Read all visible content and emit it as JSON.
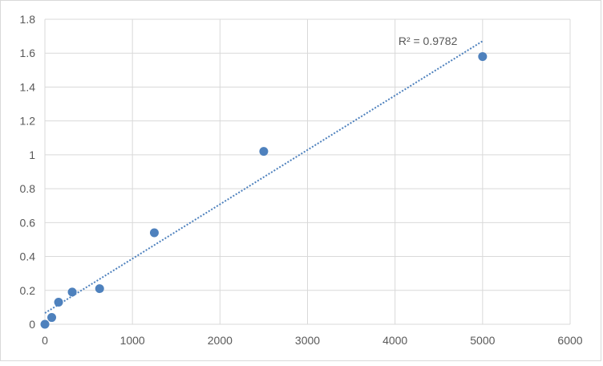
{
  "chart_data": {
    "type": "scatter",
    "title": "",
    "xlabel": "",
    "ylabel": "",
    "xlim": [
      0,
      6000
    ],
    "ylim": [
      0,
      1.8
    ],
    "xticks": [
      0,
      1000,
      2000,
      3000,
      4000,
      5000,
      6000
    ],
    "yticks": [
      0,
      0.2,
      0.4,
      0.6,
      0.8,
      1,
      1.2,
      1.4,
      1.6,
      1.8
    ],
    "grid": true,
    "legend": "none",
    "series": [
      {
        "x": [
          0,
          78,
          156,
          312,
          625,
          1250,
          2500,
          5000
        ],
        "y": [
          0.0,
          0.04,
          0.13,
          0.19,
          0.21,
          0.54,
          1.02,
          1.58
        ],
        "color": "#4e81bd"
      }
    ],
    "trendline": {
      "type": "linear",
      "style": "dotted",
      "color": "#4e81bd",
      "x_range": [
        0,
        5000
      ],
      "slope": 0.000321,
      "intercept": 0.066,
      "label": "R² = 0.9782"
    }
  }
}
